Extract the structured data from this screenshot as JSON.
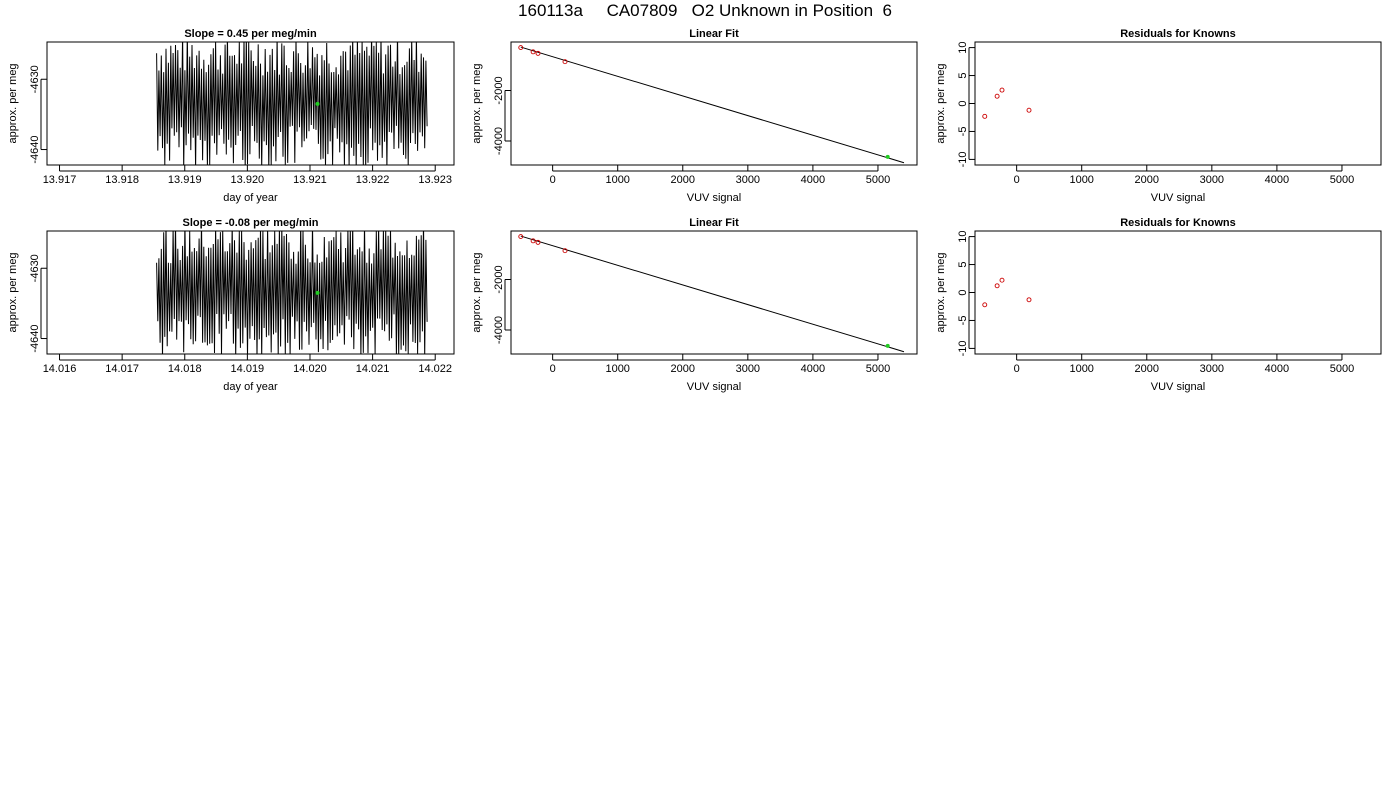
{
  "title": "160113a     CA07809   O2 Unknown in Position  6",
  "colors": {
    "axis": "#000000",
    "trace": "#000000",
    "known": "#cc0000",
    "unknown": "#22cc22"
  },
  "chart_data": [
    {
      "type": "line",
      "title": "Slope =  0.45  per meg/min",
      "xlabel": "day of year",
      "ylabel": "approx. per meg",
      "xlim": [
        13.9168,
        13.9233
      ],
      "ylim": [
        -4642.2,
        -4624.7
      ],
      "xticks": [
        "13.917",
        "13.918",
        "13.919",
        "13.920",
        "13.921",
        "13.922",
        "13.923"
      ],
      "yticks": [
        "-4640",
        "-4630"
      ],
      "trace_x_range": [
        13.91855,
        13.92287
      ],
      "trace_y_range": [
        -4643,
        -4623
      ],
      "highlight_point": {
        "x": 13.92112,
        "y": -4633.5
      }
    },
    {
      "type": "scatter",
      "title": "Linear Fit",
      "xlabel": "VUV signal",
      "ylabel": "approx. per meg",
      "xlim": [
        -640,
        5600
      ],
      "ylim": [
        -4950,
        -80
      ],
      "xticks": [
        "0",
        "1000",
        "2000",
        "3000",
        "4000",
        "5000"
      ],
      "yticks": [
        "-4000",
        "-2000"
      ],
      "knowns": [
        {
          "x": -490,
          "y": -300
        },
        {
          "x": -300,
          "y": -470
        },
        {
          "x": -225,
          "y": -530
        },
        {
          "x": 190,
          "y": -860
        }
      ],
      "unknown": {
        "x": 5150,
        "y": -4630
      },
      "fit_line": {
        "x": [
          -490,
          5400
        ],
        "y": [
          -280,
          -4860
        ]
      }
    },
    {
      "type": "scatter",
      "title": "Residuals for Knowns",
      "xlabel": "VUV signal",
      "ylabel": "approx. per meg",
      "xlim": [
        -640,
        5600
      ],
      "ylim": [
        -11,
        11
      ],
      "xticks": [
        "0",
        "1000",
        "2000",
        "3000",
        "4000",
        "5000"
      ],
      "yticks": [
        "-10",
        "-5",
        "0",
        "5",
        "10"
      ],
      "residuals": [
        {
          "x": -490,
          "y": -2.3
        },
        {
          "x": -300,
          "y": 1.3
        },
        {
          "x": -225,
          "y": 2.4
        },
        {
          "x": 190,
          "y": -1.2
        }
      ]
    },
    {
      "type": "line",
      "title": "Slope =  -0.08  per meg/min",
      "xlabel": "day of year",
      "ylabel": "approx. per meg",
      "xlim": [
        14.0158,
        14.0223
      ],
      "ylim": [
        -4642.2,
        -4624.7
      ],
      "xticks": [
        "14.016",
        "14.017",
        "14.018",
        "14.019",
        "14.020",
        "14.021",
        "14.022"
      ],
      "yticks": [
        "-4640",
        "-4630"
      ],
      "trace_x_range": [
        14.01755,
        14.02187
      ],
      "trace_y_range": [
        -4643,
        -4623
      ],
      "highlight_point": {
        "x": 14.02012,
        "y": -4633.5
      }
    },
    {
      "type": "scatter",
      "title": "Linear Fit",
      "xlabel": "VUV signal",
      "ylabel": "approx. per meg",
      "xlim": [
        -640,
        5600
      ],
      "ylim": [
        -4950,
        -80
      ],
      "xticks": [
        "0",
        "1000",
        "2000",
        "3000",
        "4000",
        "5000"
      ],
      "yticks": [
        "-4000",
        "-2000"
      ],
      "knowns": [
        {
          "x": -490,
          "y": -300
        },
        {
          "x": -300,
          "y": -470
        },
        {
          "x": -225,
          "y": -530
        },
        {
          "x": 190,
          "y": -860
        }
      ],
      "unknown": {
        "x": 5150,
        "y": -4630
      },
      "fit_line": {
        "x": [
          -490,
          5400
        ],
        "y": [
          -280,
          -4860
        ]
      }
    },
    {
      "type": "scatter",
      "title": "Residuals for Knowns",
      "xlabel": "VUV signal",
      "ylabel": "approx. per meg",
      "xlim": [
        -640,
        5600
      ],
      "ylim": [
        -11,
        11
      ],
      "xticks": [
        "0",
        "1000",
        "2000",
        "3000",
        "4000",
        "5000"
      ],
      "yticks": [
        "-10",
        "-5",
        "0",
        "5",
        "10"
      ],
      "residuals": [
        {
          "x": -490,
          "y": -2.2
        },
        {
          "x": -300,
          "y": 1.2
        },
        {
          "x": -225,
          "y": 2.2
        },
        {
          "x": 190,
          "y": -1.3
        }
      ]
    }
  ]
}
